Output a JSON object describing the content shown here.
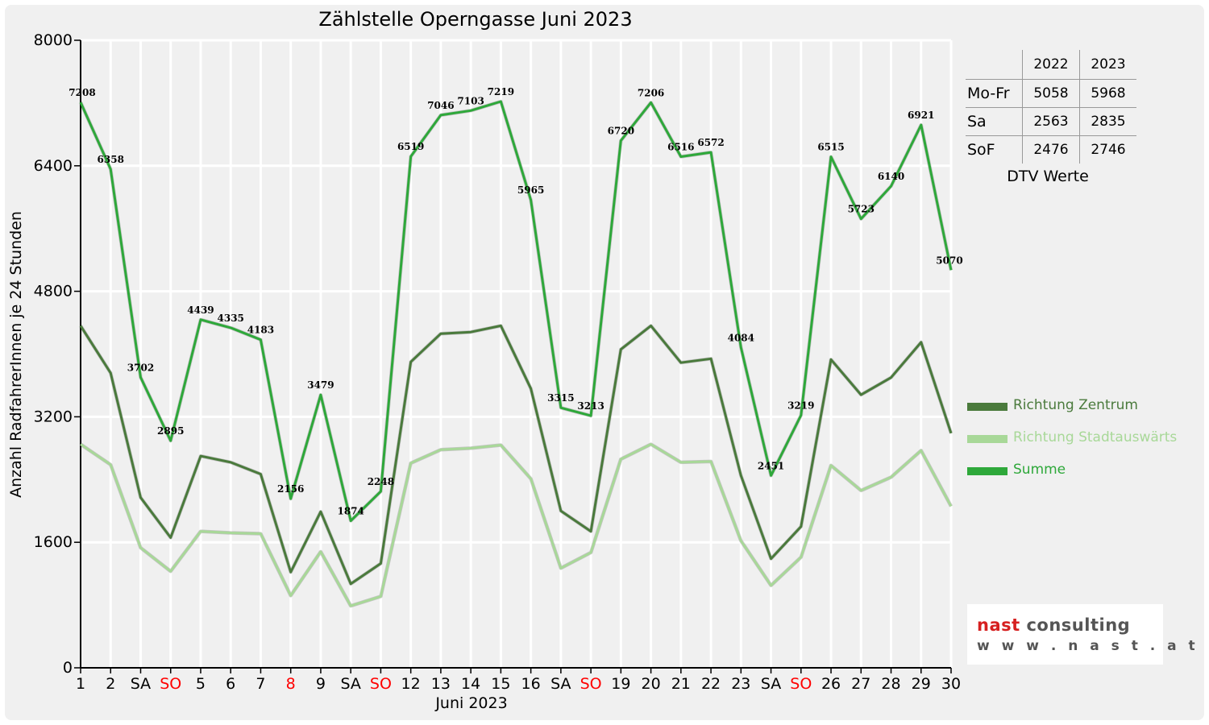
{
  "chart_data": {
    "type": "line",
    "title": "Zählstelle Operngasse Juni 2023",
    "xlabel": "Juni 2023",
    "ylabel": "Anzahl RadfahrerInnen je 24 Stunden",
    "ylim": [
      0,
      8000
    ],
    "yticks": [
      "0",
      "1600",
      "3200",
      "4800",
      "6400",
      "8000"
    ],
    "grid": true,
    "legend_position": "right",
    "x": [
      1,
      2,
      3,
      4,
      5,
      6,
      7,
      8,
      9,
      10,
      11,
      12,
      13,
      14,
      15,
      16,
      17,
      18,
      19,
      20,
      21,
      22,
      23,
      24,
      25,
      26,
      27,
      28,
      29,
      30
    ],
    "categories": [
      "1",
      "2",
      "SA",
      "SO",
      "5",
      "6",
      "7",
      "8",
      "9",
      "SA",
      "SO",
      "12",
      "13",
      "14",
      "15",
      "16",
      "SA",
      "SO",
      "19",
      "20",
      "21",
      "22",
      "23",
      "SA",
      "SO",
      "26",
      "27",
      "28",
      "29",
      "30"
    ],
    "red_categories": [
      4,
      8,
      11,
      18,
      25
    ],
    "series": [
      {
        "name": "Richtung Zentrum",
        "color": "#4a7a3c",
        "values": [
          4360,
          3760,
          2170,
          1660,
          2700,
          2620,
          2470,
          1220,
          1990,
          1070,
          1330,
          3900,
          4260,
          4280,
          4360,
          3560,
          2000,
          1740,
          4060,
          4360,
          3890,
          3940,
          2450,
          1390,
          1800,
          3930,
          3480,
          3700,
          4150,
          2990
        ]
      },
      {
        "name": "Richtung Stadtauswärts",
        "color": "#a8d898",
        "values": [
          2850,
          2590,
          1530,
          1230,
          1740,
          1720,
          1710,
          920,
          1480,
          790,
          910,
          2610,
          2780,
          2800,
          2840,
          2410,
          1270,
          1470,
          2660,
          2850,
          2620,
          2630,
          1620,
          1050,
          1410,
          2580,
          2260,
          2430,
          2770,
          2060
        ]
      },
      {
        "name": "Summe",
        "color": "#2ea83a",
        "values": [
          7208,
          6358,
          3702,
          2895,
          4439,
          4335,
          4183,
          2156,
          3479,
          1874,
          2248,
          6519,
          7046,
          7103,
          7219,
          5965,
          3315,
          3213,
          6720,
          7206,
          6516,
          6572,
          4084,
          2451,
          3219,
          6515,
          5723,
          6140,
          6921,
          5070
        ]
      }
    ],
    "data_labels": [
      "7208",
      "6358",
      "3702",
      "2895",
      "4439",
      "4335",
      "4183",
      "2156",
      "3479",
      "1874",
      "2248",
      "6519",
      "7046",
      "7103",
      "7219",
      "5965",
      "3315",
      "3213",
      "6720",
      "7206",
      "6516",
      "6572",
      "4084",
      "2451",
      "3219",
      "6515",
      "5723",
      "6140",
      "6921",
      "5070"
    ]
  },
  "dtv_table": {
    "caption": "DTV Werte",
    "col_headers": [
      "2022",
      "2023"
    ],
    "rows": [
      {
        "label": "Mo-Fr",
        "v2022": "5058",
        "v2023": "5968"
      },
      {
        "label": "Sa",
        "v2022": "2563",
        "v2023": "2835"
      },
      {
        "label": "SoF",
        "v2022": "2476",
        "v2023": "2746"
      }
    ]
  },
  "logo": {
    "name_part1": "nast",
    "name_part2": " consulting",
    "url": "w w w . n a s t . a t",
    "color1": "#d62020",
    "color2": "#555555"
  },
  "colors": {
    "background": "#f0f0f0",
    "plot_background": "#f0f0f0",
    "grid": "#ffffff",
    "weekend_red": "#ff0000"
  }
}
